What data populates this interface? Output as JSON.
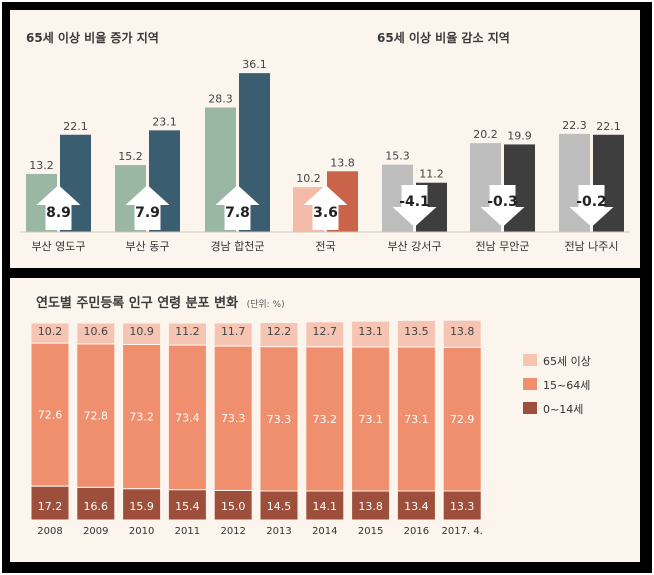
{
  "colors": {
    "inc_2012": "#9ab7a4",
    "inc_2017": "#3b5d70",
    "nat_2012": "#f4bba8",
    "nat_2017": "#c9644b",
    "dec_2012": "#bdbdbd",
    "dec_2017": "#3e3e3e",
    "age65": "#f6c4b3",
    "age15_64": "#ef8f6e",
    "age0_14": "#9e4f3c",
    "panel_bg": "#fbf5ee",
    "frame": "#000000"
  },
  "top": {
    "increase_title": "65세 이상 비율 증가 지역",
    "decrease_title": "65세 이상 비율 감소 지역"
  },
  "bottom": {
    "title": "연도별 주민등록 인구 연령 분포 변화",
    "unit": "(단위: %)"
  },
  "chart_data": [
    {
      "type": "bar",
      "title": "65세 이상 비율 증가 지역 / 65세 이상 비율 감소 지역",
      "categories": [
        "부산 영도구",
        "부산 동구",
        "경남 합천군",
        "전국",
        "부산 강서구",
        "전남 무안군",
        "전남 나주시"
      ],
      "groups": [
        "increase",
        "increase",
        "increase",
        "national",
        "decrease",
        "decrease",
        "decrease"
      ],
      "series": [
        {
          "values": [
            13.2,
            15.2,
            28.3,
            10.2,
            15.3,
            20.2,
            22.3
          ]
        },
        {
          "values": [
            22.1,
            23.1,
            36.1,
            13.8,
            11.2,
            19.9,
            22.1
          ]
        }
      ],
      "change": [
        8.9,
        7.9,
        7.8,
        3.6,
        -4.1,
        -0.3,
        -0.2
      ],
      "change_labels": [
        "8.9",
        "7.9",
        "7.8",
        "3.6",
        "-4.1",
        "-0.3",
        "-0.2"
      ],
      "legend": "none",
      "grid": false
    },
    {
      "type": "bar",
      "stacked": true,
      "title": "연도별 주민등록 인구 연령 분포 변화",
      "unit": "(단위: %)",
      "categories": [
        "2008",
        "2009",
        "2010",
        "2011",
        "2012",
        "2013",
        "2014",
        "2015",
        "2016",
        "2017. 4."
      ],
      "series": [
        {
          "name": "0~14세",
          "values": [
            17.2,
            16.6,
            15.9,
            15.4,
            15.0,
            14.5,
            14.1,
            13.8,
            13.4,
            13.3
          ]
        },
        {
          "name": "15~64세",
          "values": [
            72.6,
            72.8,
            73.2,
            73.4,
            73.3,
            73.3,
            73.2,
            73.1,
            73.1,
            72.9
          ]
        },
        {
          "name": "65세 이상",
          "values": [
            10.2,
            10.6,
            10.9,
            11.2,
            11.7,
            12.2,
            12.7,
            13.1,
            13.5,
            13.8
          ]
        }
      ],
      "legend_order": [
        "65세 이상",
        "15~64세",
        "0~14세"
      ],
      "legend": "right",
      "grid": false
    }
  ]
}
